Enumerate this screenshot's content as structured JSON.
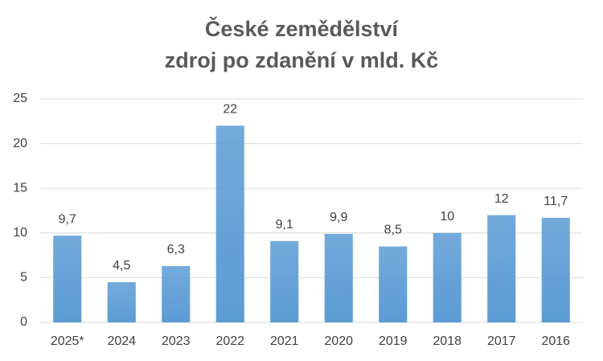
{
  "chart_data": {
    "type": "bar",
    "title": "České zemědělství",
    "subtitle": "zdroj po zdanění v mld. Kč",
    "categories": [
      "2025*",
      "2024",
      "2023",
      "2022",
      "2021",
      "2020",
      "2019",
      "2018",
      "2017",
      "2016"
    ],
    "values": [
      9.7,
      4.5,
      6.3,
      22,
      9.1,
      9.9,
      8.5,
      10,
      12,
      11.7
    ],
    "value_labels": [
      "9,7",
      "4,5",
      "6,3",
      "22",
      "9,1",
      "9,9",
      "8,5",
      "10",
      "12",
      "11,7"
    ],
    "color": "#5b9bd5",
    "ylim": [
      0,
      25
    ],
    "yticks": [
      0,
      5,
      10,
      15,
      20,
      25
    ],
    "grid": true
  }
}
